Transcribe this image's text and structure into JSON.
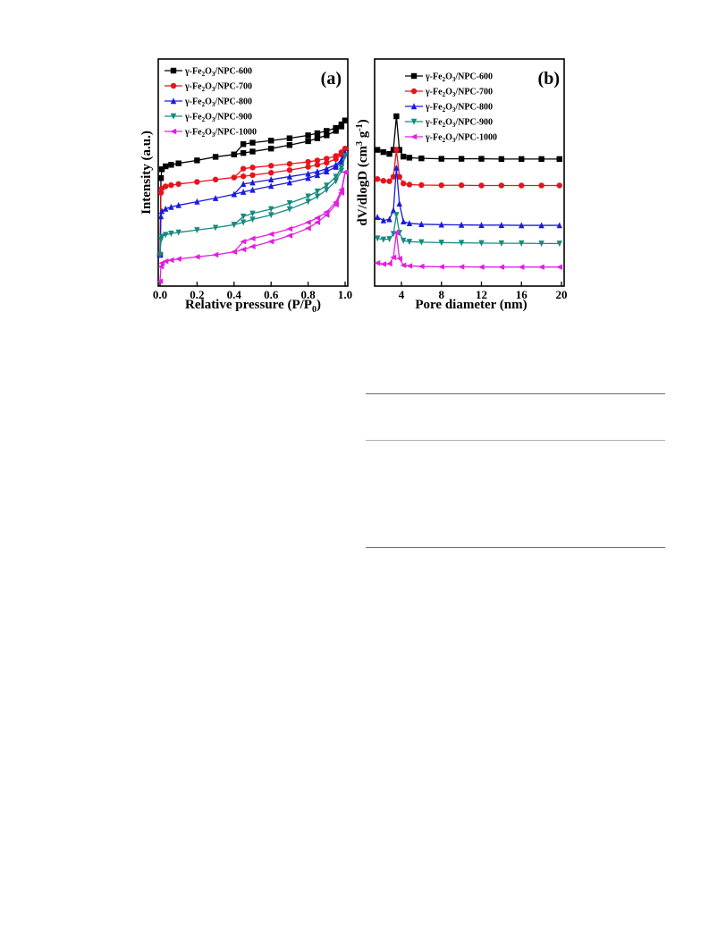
{
  "panels": [
    {
      "label": "(a)",
      "xlabel_main": "Relative pressure (P/P",
      "xlabel_sub": "0",
      "xlabel_end": ")",
      "ylabel": "Intensity (a.u.)",
      "xticks": [
        "0.0",
        "0.2",
        "0.4",
        "0.6",
        "0.8",
        "1.0"
      ],
      "legend": [
        "γ-Fe2O3/NPC-600",
        "γ-Fe2O3/NPC-700",
        "γ-Fe2O3/NPC-800",
        "γ-Fe2O3/NPC-900",
        "γ-Fe2O3/NPC-1000"
      ]
    },
    {
      "label": "(b)",
      "xlabel": "Pore diameter (nm)",
      "ylabel_main": "dV/dlogD (cm",
      "ylabel_sup1": "3",
      "ylabel_mid": " g",
      "ylabel_sup2": "-1",
      "ylabel_end": ")",
      "xticks": [
        "4",
        "8",
        "12",
        "16",
        "20"
      ],
      "legend": [
        "γ-Fe2O3/NPC-600",
        "γ-Fe2O3/NPC-700",
        "γ-Fe2O3/NPC-800",
        "γ-Fe2O3/NPC-900",
        "γ-Fe2O3/NPC-1000"
      ]
    }
  ],
  "chart_data": [
    {
      "type": "line",
      "title": "(a)",
      "xlabel": "Relative pressure (P/P0)",
      "ylabel": "Intensity (a.u.)",
      "xlim": [
        0,
        1.0
      ],
      "yticks_shown": false,
      "series": [
        {
          "name": "γ-Fe2O3/NPC-600",
          "color": "#000000",
          "marker": "square",
          "x": [
            0.0,
            0.005,
            0.01,
            0.03,
            0.06,
            0.1,
            0.2,
            0.3,
            0.4,
            0.45,
            0.5,
            0.6,
            0.7,
            0.8,
            0.85,
            0.9,
            0.95,
            0.98,
            1.0
          ],
          "adsorption": [
            1.0,
            3.6,
            3.9,
            4.0,
            4.05,
            4.1,
            4.2,
            4.32,
            4.4,
            4.45,
            4.5,
            4.6,
            4.72,
            4.85,
            4.95,
            5.05,
            5.2,
            5.35,
            5.55
          ],
          "desorption": [
            null,
            null,
            null,
            null,
            null,
            null,
            null,
            null,
            4.4,
            4.75,
            4.8,
            4.87,
            4.95,
            5.05,
            5.12,
            5.2,
            5.3,
            5.42,
            5.55
          ]
        },
        {
          "name": "γ-Fe2O3/NPC-700",
          "color": "#e8131b",
          "marker": "circle",
          "x": [
            0.0,
            0.005,
            0.01,
            0.03,
            0.06,
            0.1,
            0.2,
            0.3,
            0.4,
            0.45,
            0.5,
            0.6,
            0.7,
            0.8,
            0.85,
            0.9,
            0.95,
            0.98,
            1.0
          ],
          "adsorption": [
            1.0,
            3.1,
            3.25,
            3.32,
            3.36,
            3.4,
            3.47,
            3.55,
            3.62,
            3.66,
            3.7,
            3.78,
            3.87,
            3.98,
            4.05,
            4.12,
            4.25,
            4.4,
            4.6
          ],
          "desorption": [
            null,
            null,
            null,
            null,
            null,
            null,
            null,
            null,
            3.62,
            3.92,
            3.96,
            4.02,
            4.08,
            4.15,
            4.2,
            4.26,
            4.35,
            4.48,
            4.6
          ]
        },
        {
          "name": "γ-Fe2O3/NPC-800",
          "color": "#1a1adb",
          "marker": "triangle-up",
          "x": [
            0.0,
            0.005,
            0.01,
            0.03,
            0.06,
            0.1,
            0.2,
            0.3,
            0.4,
            0.45,
            0.5,
            0.6,
            0.7,
            0.8,
            0.85,
            0.9,
            0.95,
            0.98,
            1.0
          ],
          "adsorption": [
            1.0,
            2.3,
            2.48,
            2.56,
            2.62,
            2.68,
            2.8,
            2.92,
            3.05,
            3.13,
            3.2,
            3.33,
            3.45,
            3.6,
            3.7,
            3.82,
            3.98,
            4.15,
            4.45
          ],
          "desorption": [
            null,
            null,
            null,
            null,
            null,
            null,
            null,
            null,
            3.05,
            3.4,
            3.45,
            3.55,
            3.65,
            3.75,
            3.82,
            3.92,
            4.05,
            4.22,
            4.45
          ]
        },
        {
          "name": "γ-Fe2O3/NPC-900",
          "color": "#168a80",
          "marker": "triangle-down",
          "x": [
            0.0,
            0.005,
            0.01,
            0.03,
            0.06,
            0.1,
            0.2,
            0.3,
            0.4,
            0.45,
            0.5,
            0.6,
            0.7,
            0.8,
            0.85,
            0.9,
            0.95,
            0.98,
            1.0
          ],
          "adsorption": [
            1.0,
            1.5,
            1.62,
            1.68,
            1.72,
            1.76,
            1.84,
            1.92,
            2.02,
            2.1,
            2.2,
            2.35,
            2.55,
            2.8,
            2.98,
            3.2,
            3.5,
            3.85,
            4.35
          ],
          "desorption": [
            null,
            null,
            null,
            null,
            null,
            null,
            null,
            null,
            2.02,
            2.3,
            2.4,
            2.55,
            2.75,
            2.98,
            3.15,
            3.35,
            3.65,
            3.95,
            4.35
          ]
        },
        {
          "name": "γ-Fe2O3/NPC-1000",
          "color": "#e020e0",
          "marker": "triangle-left",
          "x": [
            0.0,
            0.005,
            0.01,
            0.03,
            0.06,
            0.1,
            0.2,
            0.3,
            0.4,
            0.45,
            0.5,
            0.6,
            0.7,
            0.8,
            0.85,
            0.9,
            0.95,
            0.98,
            1.0
          ],
          "adsorption": [
            0.1,
            0.6,
            0.72,
            0.78,
            0.82,
            0.86,
            0.93,
            1.0,
            1.1,
            1.18,
            1.28,
            1.45,
            1.65,
            1.9,
            2.1,
            2.35,
            2.7,
            3.1,
            3.8
          ],
          "desorption": [
            null,
            null,
            null,
            null,
            null,
            null,
            null,
            null,
            1.1,
            1.45,
            1.55,
            1.7,
            1.88,
            2.1,
            2.25,
            2.45,
            2.78,
            3.2,
            3.8
          ]
        }
      ]
    },
    {
      "type": "line",
      "title": "(b)",
      "xlabel": "Pore diameter (nm)",
      "ylabel": "dV/dlogD (cm3 g-1)",
      "xlim": [
        1.5,
        20
      ],
      "yticks_shown": false,
      "series": [
        {
          "name": "γ-Fe2O3/NPC-600",
          "color": "#000000",
          "marker": "square",
          "x": [
            1.6,
            2.2,
            2.8,
            3.2,
            3.5,
            3.8,
            4.2,
            4.8,
            6,
            8,
            10,
            12,
            14,
            16,
            18,
            19.8
          ],
          "y": [
            5.6,
            5.5,
            5.42,
            5.6,
            7.1,
            5.6,
            5.3,
            5.25,
            5.22,
            5.2,
            5.2,
            5.2,
            5.19,
            5.19,
            5.19,
            5.19
          ]
        },
        {
          "name": "γ-Fe2O3/NPC-700",
          "color": "#e8131b",
          "marker": "circle",
          "x": [
            1.6,
            2.2,
            2.8,
            3.2,
            3.5,
            3.8,
            4.2,
            4.8,
            6,
            8,
            10,
            12,
            14,
            16,
            18,
            19.8
          ],
          "y": [
            4.3,
            4.22,
            4.2,
            4.4,
            5.6,
            4.4,
            4.1,
            4.05,
            4.03,
            4.02,
            4.02,
            4.01,
            4.01,
            4.01,
            4.01,
            4.01
          ]
        },
        {
          "name": "γ-Fe2O3/NPC-800",
          "color": "#1a1adb",
          "marker": "triangle-up",
          "x": [
            1.6,
            2.2,
            2.8,
            3.2,
            3.5,
            3.8,
            4.2,
            4.8,
            6,
            8,
            10,
            12,
            14,
            16,
            18,
            19.8
          ],
          "y": [
            2.6,
            2.45,
            2.5,
            2.9,
            4.8,
            3.2,
            2.4,
            2.32,
            2.28,
            2.26,
            2.25,
            2.24,
            2.24,
            2.23,
            2.23,
            2.23
          ]
        },
        {
          "name": "γ-Fe2O3/NPC-900",
          "color": "#168a80",
          "marker": "triangle-down",
          "x": [
            1.6,
            2.2,
            2.8,
            3.2,
            3.5,
            3.8,
            4.2,
            4.8,
            6,
            8,
            10,
            12,
            14,
            16,
            18,
            19.8
          ],
          "y": [
            1.65,
            1.6,
            1.62,
            1.85,
            2.7,
            1.9,
            1.55,
            1.5,
            1.48,
            1.46,
            1.45,
            1.44,
            1.43,
            1.43,
            1.42,
            1.42
          ]
        },
        {
          "name": "γ-Fe2O3/NPC-1000",
          "color": "#e020e0",
          "marker": "triangle-left",
          "x": [
            1.6,
            2.2,
            2.8,
            3.2,
            3.5,
            3.8,
            4.2,
            4.8,
            6,
            8,
            10,
            12,
            14,
            16,
            18,
            19.8
          ],
          "y": [
            0.55,
            0.5,
            0.52,
            0.8,
            1.9,
            0.75,
            0.45,
            0.42,
            0.4,
            0.38,
            0.38,
            0.37,
            0.37,
            0.37,
            0.37,
            0.37
          ]
        }
      ]
    }
  ]
}
